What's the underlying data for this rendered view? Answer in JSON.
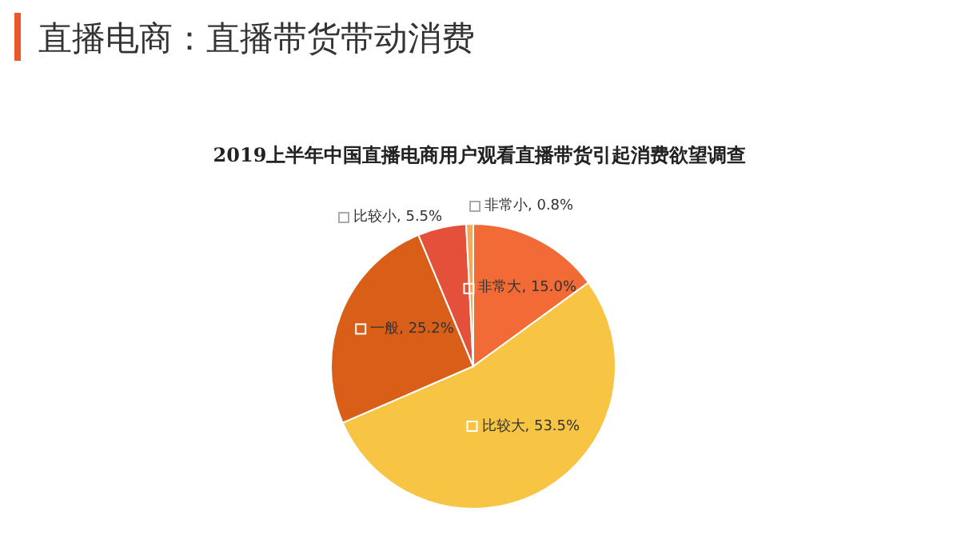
{
  "chart_data": {
    "type": "pie",
    "title": "直播电商：直播带货带动消费",
    "subtitle": "2019上半年中国直播电商用户观看直播带货引起消费欲望调查",
    "categories": [
      "非常大",
      "比较大",
      "一般",
      "比较小",
      "非常小"
    ],
    "values": [
      15.0,
      53.5,
      25.2,
      5.5,
      0.8
    ],
    "value_labels": [
      "15.0%",
      "53.5%",
      "25.2%",
      "5.5%",
      "0.8%"
    ],
    "colors": [
      "#f26a35",
      "#f8c443",
      "#d95e17",
      "#e4503a",
      "#f5a85a"
    ]
  }
}
